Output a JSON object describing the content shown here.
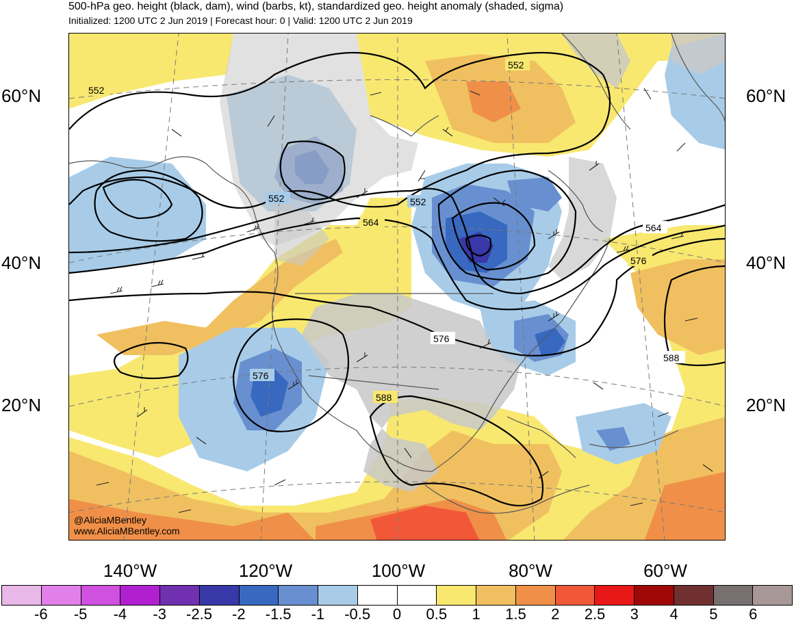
{
  "header": {
    "title": "500-hPa geo. height (black, dam), wind (barbs, kt), standardized geo. height anomaly (shaded, sigma)",
    "subtitle": "Initialized: 1200 UTC 2 Jun 2019 | Forecast hour: 0 | Valid: 1200 UTC 2 Jun 2019"
  },
  "map": {
    "lat_labels": [
      "60°N",
      "40°N",
      "20°N"
    ],
    "lon_labels": [
      "140°W",
      "120°W",
      "100°W",
      "80°W",
      "60°W"
    ],
    "contour_labels": {
      "c552_a": "552",
      "c552_b": "552",
      "c552_c": "552",
      "c552_d": "552",
      "c564_a": "564",
      "c564_b": "564",
      "c576_a": "576",
      "c576_b": "576",
      "c576_c": "576",
      "c588_a": "588",
      "c588_b": "588"
    },
    "credit_handle": "@AliciaMBentley",
    "credit_url": "www.AliciaMBentley.com",
    "land_color": "#c8c8c8",
    "coast_color": "#555555"
  },
  "colorbar": {
    "ticks": [
      "-6",
      "-5",
      "-4",
      "-3",
      "-2.5",
      "-2",
      "-1.5",
      "-1",
      "-0.5",
      "0",
      "0.5",
      "1",
      "1.5",
      "2",
      "2.5",
      "3",
      "4",
      "5",
      "6"
    ],
    "colors": [
      "#e8b8e8",
      "#e080e8",
      "#d050e0",
      "#b020d0",
      "#7030b0",
      "#3838a8",
      "#3868c0",
      "#6890d0",
      "#a8cce8",
      "#ffffff",
      "#ffffff",
      "#f8e870",
      "#f0c060",
      "#f09048",
      "#f05838",
      "#e81818",
      "#a00808",
      "#703030",
      "#787070",
      "#a89898"
    ]
  }
}
